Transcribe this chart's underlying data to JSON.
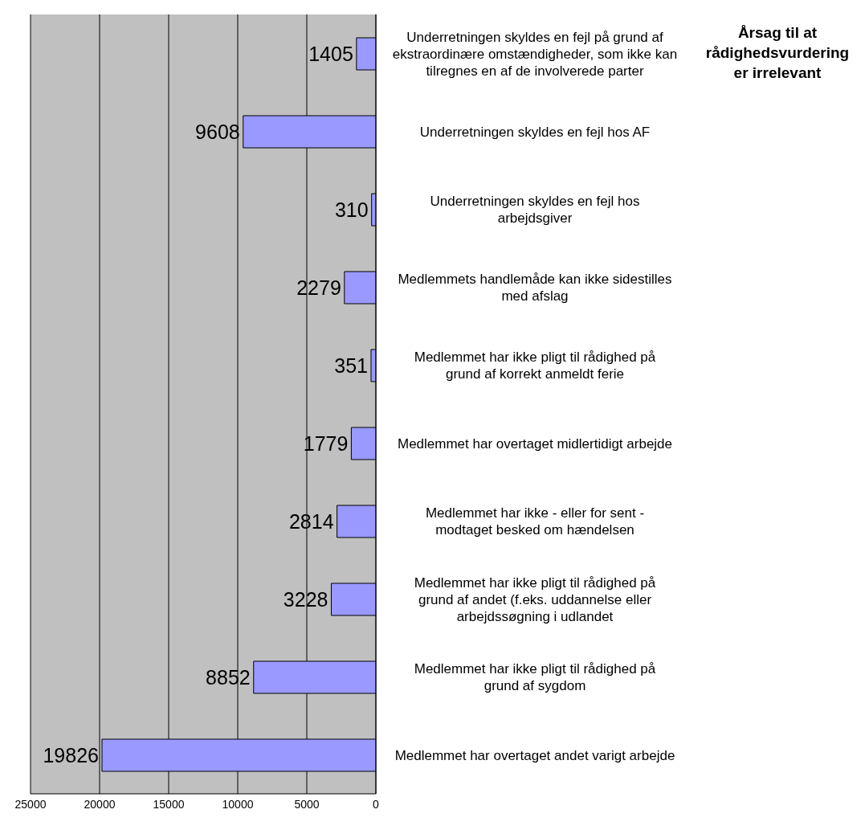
{
  "chart_data": {
    "type": "bar",
    "orientation": "horizontal",
    "title": "Årsag til at rådighedsvurdering er irrelevant",
    "categories": [
      "Underretningen skyldes en fejl på grund af ekstraordinære omstændigheder, som ikke kan tilregnes en af de involverede parter",
      "Underretningen skyldes en fejl hos AF",
      "Underretningen skyldes en fejl hos arbejdsgiver",
      "Medlemmets handlemåde kan ikke sidestilles med afslag",
      "Medlemmet har ikke pligt til rådighed på grund af korrekt anmeldt ferie",
      "Medlemmet har overtaget midlertidigt arbejde",
      "Medlemmet har ikke - eller for sent - modtaget besked om hændelsen",
      "Medlemmet har ikke pligt til rådighed på grund af andet (f.eks. uddannelse eller arbejdssøgning i udlandet",
      "Medlemmet har ikke pligt til rådighed på grund af sygdom",
      "Medlemmet har overtaget andet varigt arbejde"
    ],
    "values": [
      1405,
      9608,
      310,
      2279,
      351,
      1779,
      2814,
      3228,
      8852,
      19826
    ],
    "color": "#9999ff",
    "xlim": [
      25000,
      0
    ],
    "xticks": [
      25000,
      20000,
      15000,
      10000,
      5000,
      0
    ],
    "grid": "x",
    "data_labels": true
  }
}
